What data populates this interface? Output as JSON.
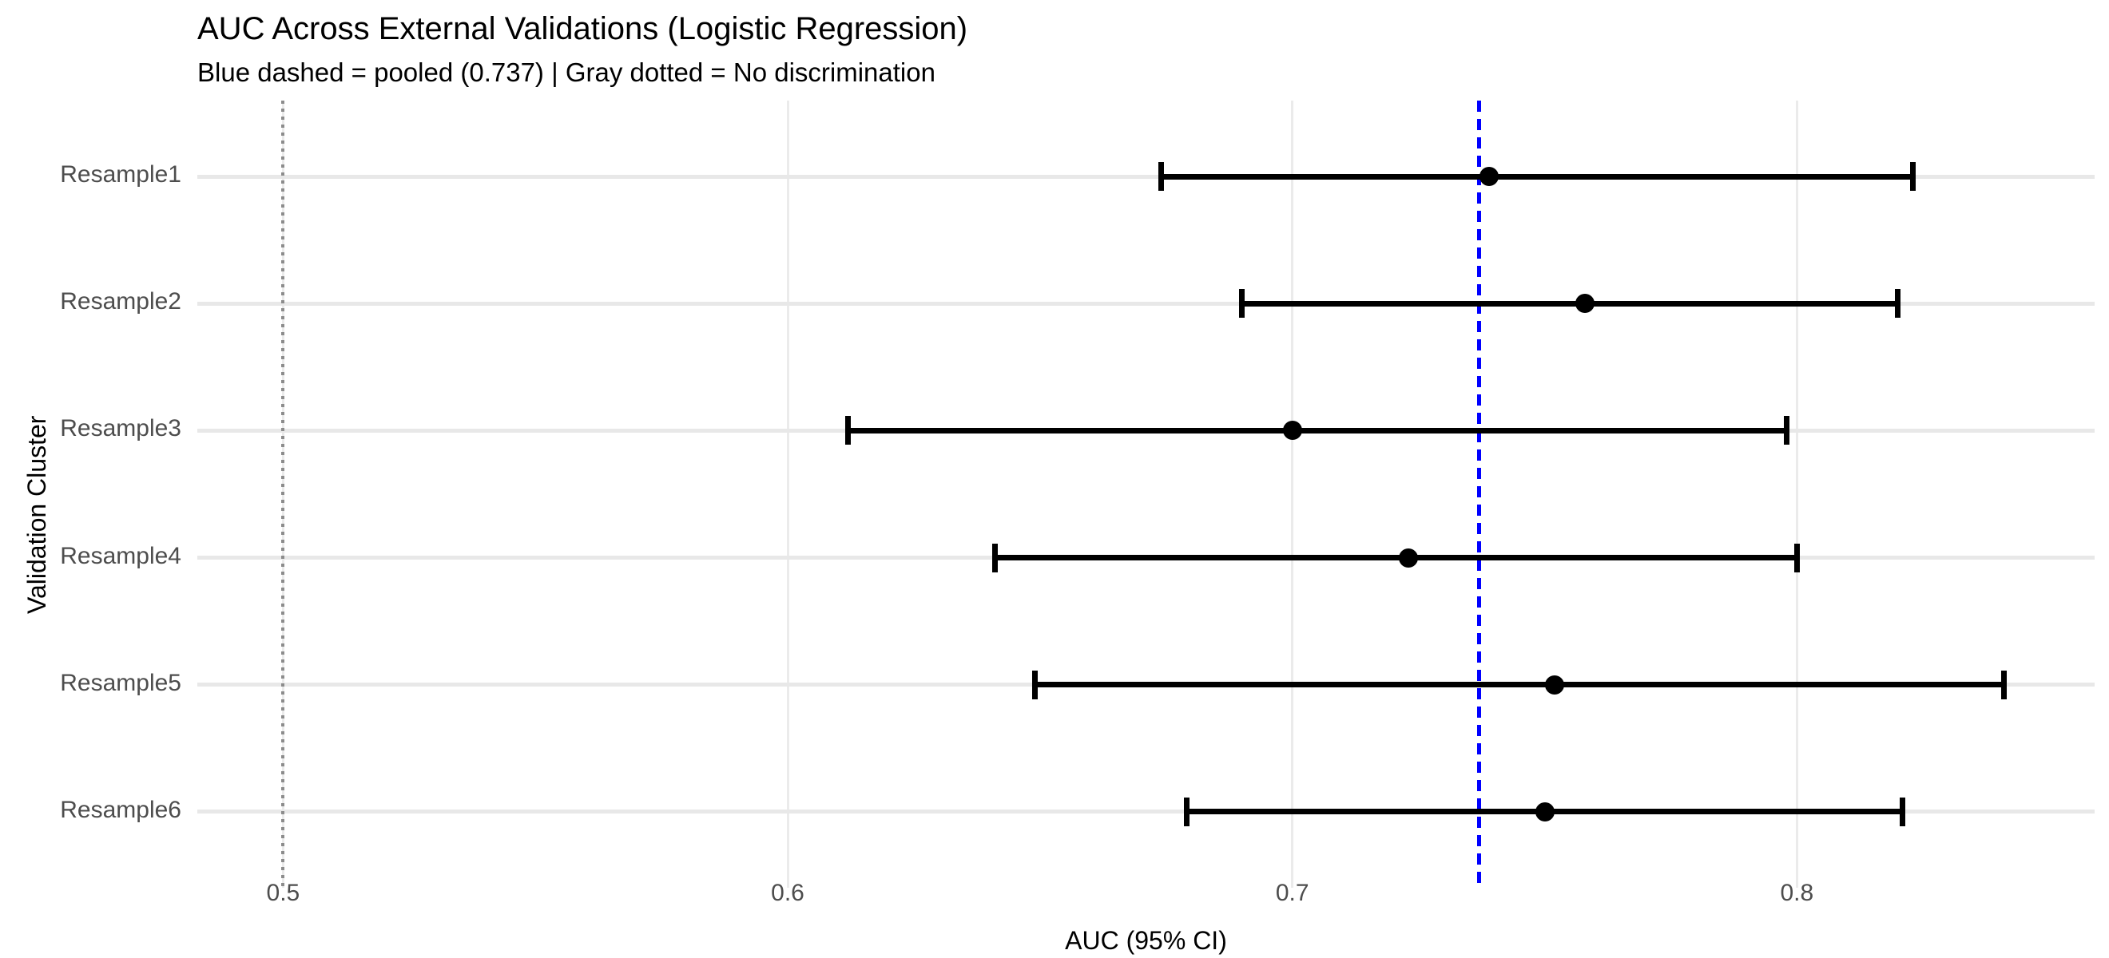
{
  "figure": {
    "title": "AUC Across External Validations (Logistic Regression)",
    "subtitle": "Blue dashed = pooled (0.737) | Gray dotted = No discrimination",
    "x_axis_title": "AUC (95% CI)",
    "y_axis_title": "Validation Cluster"
  },
  "chart_data": {
    "type": "scatter",
    "subtype": "forest-plot",
    "title": "AUC Across External Validations (Logistic Regression)",
    "subtitle": "Blue dashed = pooled (0.737) | Gray dotted = No discrimination",
    "xlabel": "AUC (95% CI)",
    "ylabel": "Validation Cluster",
    "categories": [
      "Resample1",
      "Resample2",
      "Resample3",
      "Resample4",
      "Resample5",
      "Resample6"
    ],
    "points": [
      {
        "label": "Resample1",
        "auc": 0.739,
        "ci_low": 0.674,
        "ci_high": 0.823
      },
      {
        "label": "Resample2",
        "auc": 0.758,
        "ci_low": 0.69,
        "ci_high": 0.82
      },
      {
        "label": "Resample3",
        "auc": 0.7,
        "ci_low": 0.612,
        "ci_high": 0.798
      },
      {
        "label": "Resample4",
        "auc": 0.723,
        "ci_low": 0.641,
        "ci_high": 0.8
      },
      {
        "label": "Resample5",
        "auc": 0.752,
        "ci_low": 0.649,
        "ci_high": 0.841
      },
      {
        "label": "Resample6",
        "auc": 0.75,
        "ci_low": 0.679,
        "ci_high": 0.821
      }
    ],
    "reference_lines": [
      {
        "name": "pooled",
        "value": 0.737,
        "style": "dashed",
        "color": "#0000FF",
        "legend_text": "Blue dashed = pooled (0.737)"
      },
      {
        "name": "no-discrimination",
        "value": 0.5,
        "style": "dotted",
        "color": "#8C8C8C",
        "legend_text": "Gray dotted = No discrimination"
      }
    ],
    "x_ticks": [
      0.5,
      0.6,
      0.7,
      0.8
    ],
    "x_tick_labels": [
      "0.5",
      "0.6",
      "0.7",
      "0.8"
    ],
    "xlim": [
      0.483,
      0.859
    ],
    "grid": "major-only",
    "legend": "none",
    "colors": {
      "marker": "#000000",
      "errorbar": "#000000",
      "grid": "#EBEBEB",
      "tick_text": "#4D4D4D",
      "title_text": "#000000",
      "pooled_line": "#0000FF",
      "no_discrimination_line": "#8C8C8C"
    }
  }
}
